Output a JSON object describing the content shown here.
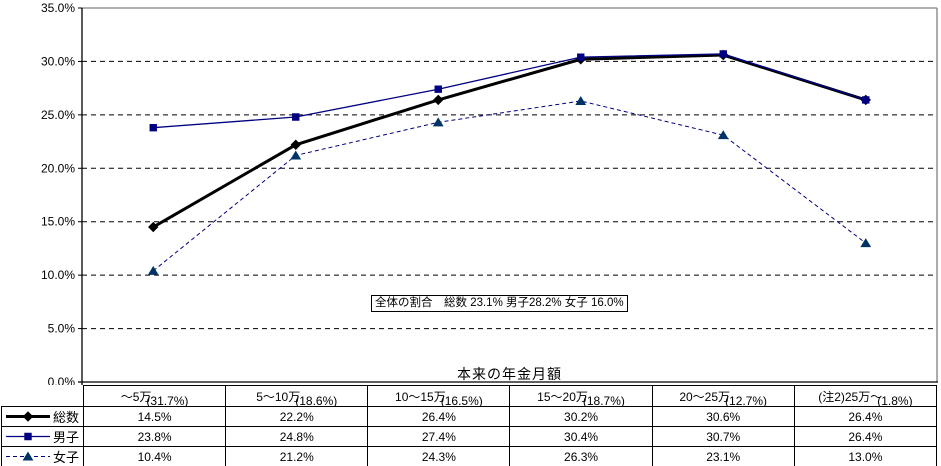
{
  "chart_data": {
    "type": "line",
    "title": "",
    "xlabel": "本来の年金月額",
    "ylabel": "",
    "ylim": [
      0,
      35
    ],
    "ytick_step": 5,
    "ytick_labels": [
      "0.0%",
      "5.0%",
      "10.0%",
      "15.0%",
      "20.0%",
      "25.0%",
      "30.0%",
      "35.0%"
    ],
    "grid": "horizontal-dashed",
    "legend_position": "table-left-column",
    "categories": [
      {
        "main": "～5万",
        "sub": "(31.7%)"
      },
      {
        "main": "5～10万",
        "sub": "(18.6%)"
      },
      {
        "main": "10～15万",
        "sub": "(16.5%)"
      },
      {
        "main": "15～20万",
        "sub": "(18.7%)"
      },
      {
        "main": "20～25万",
        "sub": "(12.7%)"
      },
      {
        "main": "(注2)25万～",
        "sub": "(1.8%)"
      }
    ],
    "series": [
      {
        "name": "総数",
        "values": [
          14.5,
          22.2,
          26.4,
          30.2,
          30.6,
          26.4
        ],
        "color": "#000000",
        "marker": "diamond",
        "marker_color": "#000000",
        "line_style": "solid",
        "line_width": 3
      },
      {
        "name": "男子",
        "values": [
          23.8,
          24.8,
          27.4,
          30.4,
          30.7,
          26.4
        ],
        "color": "#000080",
        "marker": "square",
        "marker_color": "#000080",
        "line_style": "solid",
        "line_width": 1.3
      },
      {
        "name": "女子",
        "values": [
          10.4,
          21.2,
          24.3,
          26.3,
          23.1,
          13.0
        ],
        "color": "#000080",
        "marker": "triangle",
        "marker_color": "#003366",
        "line_style": "dashed",
        "line_width": 1
      }
    ],
    "annotation": "全体の割合　総数 23.1% 男子28.2% 女子 16.0%"
  },
  "colors": {
    "plot_border": "#808080",
    "axis": "#000000",
    "gridline": "#000000",
    "table_border": "#000000",
    "background": "#ffffff"
  }
}
